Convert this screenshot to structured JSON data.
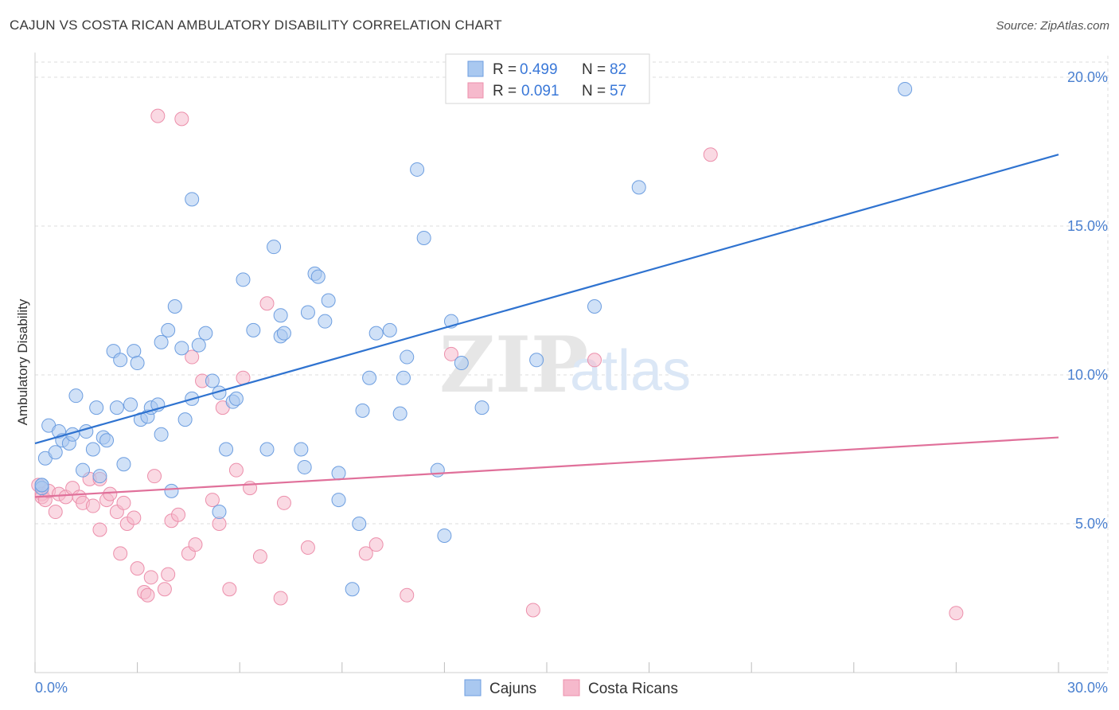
{
  "header": {
    "title": "CAJUN VS COSTA RICAN AMBULATORY DISABILITY CORRELATION CHART",
    "source": "Source: ZipAtlas.com"
  },
  "watermark": {
    "part1": "ZIP",
    "part2": "atlas"
  },
  "legend": {
    "rows": [
      {
        "r_label": "R =",
        "r_value": "0.499",
        "n_label": "N =",
        "n_value": "82"
      },
      {
        "r_label": "R =",
        "r_value": "0.091",
        "n_label": "N =",
        "n_value": "57"
      }
    ]
  },
  "bottom_legend": [
    "Cajuns",
    "Costa Ricans"
  ],
  "colors": {
    "blue_fill": "#a9c8f0",
    "blue_stroke": "#6d9ee0",
    "blue_line": "#2f73d0",
    "pink_fill": "#f6b9cc",
    "pink_stroke": "#ec8fab",
    "pink_line": "#e0709a",
    "grid": "#dcdcdc",
    "tick_text": "#4a80d0"
  },
  "chart_data": {
    "type": "scatter",
    "title": "CAJUN VS COSTA RICAN AMBULATORY DISABILITY CORRELATION CHART",
    "xlabel": "",
    "ylabel": "Ambulatory Disability",
    "xlim": [
      0,
      30
    ],
    "ylim": [
      0,
      20.5
    ],
    "x_tick_labels": [
      "0.0%",
      "30.0%"
    ],
    "y_ticks": [
      5,
      10,
      15,
      20
    ],
    "y_tick_labels": [
      "5.0%",
      "10.0%",
      "15.0%",
      "20.0%"
    ],
    "grid": true,
    "legend_position": "top-center",
    "series": [
      {
        "name": "Cajuns",
        "r": 0.499,
        "n": 82,
        "trend": {
          "x": [
            0,
            30
          ],
          "y": [
            7.7,
            17.4
          ]
        },
        "points": [
          [
            0.2,
            6.3
          ],
          [
            0.2,
            6.2
          ],
          [
            0.3,
            7.2
          ],
          [
            0.4,
            8.3
          ],
          [
            0.6,
            7.4
          ],
          [
            0.7,
            8.1
          ],
          [
            0.8,
            7.8
          ],
          [
            1.0,
            7.7
          ],
          [
            1.1,
            8.0
          ],
          [
            1.2,
            9.3
          ],
          [
            1.4,
            6.8
          ],
          [
            1.5,
            8.1
          ],
          [
            1.7,
            7.5
          ],
          [
            1.8,
            8.9
          ],
          [
            1.9,
            6.6
          ],
          [
            2.0,
            7.9
          ],
          [
            2.1,
            7.8
          ],
          [
            2.3,
            10.8
          ],
          [
            2.4,
            8.9
          ],
          [
            2.5,
            10.5
          ],
          [
            2.6,
            7.0
          ],
          [
            2.8,
            9.0
          ],
          [
            2.9,
            10.8
          ],
          [
            3.0,
            10.4
          ],
          [
            3.1,
            8.5
          ],
          [
            3.3,
            8.6
          ],
          [
            3.4,
            8.9
          ],
          [
            3.6,
            9.0
          ],
          [
            3.7,
            11.1
          ],
          [
            3.7,
            8.0
          ],
          [
            3.9,
            11.5
          ],
          [
            4.0,
            6.1
          ],
          [
            4.1,
            12.3
          ],
          [
            4.3,
            10.9
          ],
          [
            4.4,
            8.5
          ],
          [
            4.6,
            9.2
          ],
          [
            4.6,
            15.9
          ],
          [
            4.8,
            11.0
          ],
          [
            5.0,
            11.4
          ],
          [
            5.2,
            9.8
          ],
          [
            5.4,
            9.4
          ],
          [
            5.4,
            5.4
          ],
          [
            5.6,
            7.5
          ],
          [
            5.8,
            9.1
          ],
          [
            5.9,
            9.2
          ],
          [
            6.1,
            13.2
          ],
          [
            6.4,
            11.5
          ],
          [
            6.8,
            7.5
          ],
          [
            7.0,
            14.3
          ],
          [
            7.2,
            12.0
          ],
          [
            7.2,
            11.3
          ],
          [
            7.3,
            11.4
          ],
          [
            7.8,
            7.5
          ],
          [
            7.9,
            6.9
          ],
          [
            8.0,
            12.1
          ],
          [
            8.2,
            13.4
          ],
          [
            8.3,
            13.3
          ],
          [
            8.5,
            11.8
          ],
          [
            8.6,
            12.5
          ],
          [
            8.9,
            5.8
          ],
          [
            8.9,
            6.7
          ],
          [
            9.3,
            2.8
          ],
          [
            9.5,
            5.0
          ],
          [
            9.6,
            8.8
          ],
          [
            9.8,
            9.9
          ],
          [
            10.0,
            11.4
          ],
          [
            10.4,
            11.5
          ],
          [
            10.7,
            8.7
          ],
          [
            10.8,
            9.9
          ],
          [
            10.9,
            10.6
          ],
          [
            11.2,
            16.9
          ],
          [
            11.4,
            14.6
          ],
          [
            11.8,
            6.8
          ],
          [
            12.0,
            4.6
          ],
          [
            12.2,
            11.8
          ],
          [
            12.5,
            10.4
          ],
          [
            13.1,
            8.9
          ],
          [
            14.7,
            10.5
          ],
          [
            16.4,
            12.3
          ],
          [
            17.7,
            16.3
          ],
          [
            25.5,
            19.6
          ],
          [
            0.2,
            6.3
          ]
        ]
      },
      {
        "name": "Costa Ricans",
        "r": 0.091,
        "n": 57,
        "trend": {
          "x": [
            0,
            30
          ],
          "y": [
            5.9,
            7.9
          ]
        },
        "points": [
          [
            0.1,
            6.3
          ],
          [
            0.2,
            6.0
          ],
          [
            0.2,
            5.9
          ],
          [
            0.3,
            5.8
          ],
          [
            0.4,
            6.1
          ],
          [
            0.6,
            5.4
          ],
          [
            0.7,
            6.0
          ],
          [
            0.9,
            5.9
          ],
          [
            1.1,
            6.2
          ],
          [
            1.3,
            5.9
          ],
          [
            1.4,
            5.7
          ],
          [
            1.6,
            6.5
          ],
          [
            1.7,
            5.6
          ],
          [
            1.9,
            6.5
          ],
          [
            1.9,
            4.8
          ],
          [
            2.1,
            5.8
          ],
          [
            2.2,
            6.0
          ],
          [
            2.4,
            5.4
          ],
          [
            2.5,
            4.0
          ],
          [
            2.6,
            5.7
          ],
          [
            2.7,
            5.0
          ],
          [
            2.9,
            5.2
          ],
          [
            3.0,
            3.5
          ],
          [
            3.2,
            2.7
          ],
          [
            3.4,
            3.2
          ],
          [
            3.5,
            6.6
          ],
          [
            3.6,
            18.7
          ],
          [
            3.8,
            2.8
          ],
          [
            3.9,
            3.3
          ],
          [
            4.0,
            5.1
          ],
          [
            4.2,
            5.3
          ],
          [
            4.3,
            18.6
          ],
          [
            4.5,
            4.0
          ],
          [
            4.6,
            10.6
          ],
          [
            4.7,
            4.3
          ],
          [
            4.9,
            9.8
          ],
          [
            5.2,
            5.8
          ],
          [
            5.4,
            5.0
          ],
          [
            5.5,
            8.9
          ],
          [
            5.7,
            2.8
          ],
          [
            5.9,
            6.8
          ],
          [
            6.1,
            9.9
          ],
          [
            6.3,
            6.2
          ],
          [
            6.6,
            3.9
          ],
          [
            6.8,
            12.4
          ],
          [
            7.2,
            2.5
          ],
          [
            7.3,
            5.7
          ],
          [
            8.0,
            4.2
          ],
          [
            9.7,
            4.0
          ],
          [
            10.0,
            4.3
          ],
          [
            10.9,
            2.6
          ],
          [
            12.2,
            10.7
          ],
          [
            14.6,
            2.1
          ],
          [
            16.4,
            10.5
          ],
          [
            19.8,
            17.4
          ],
          [
            27.0,
            2.0
          ],
          [
            3.3,
            2.6
          ]
        ]
      }
    ]
  }
}
